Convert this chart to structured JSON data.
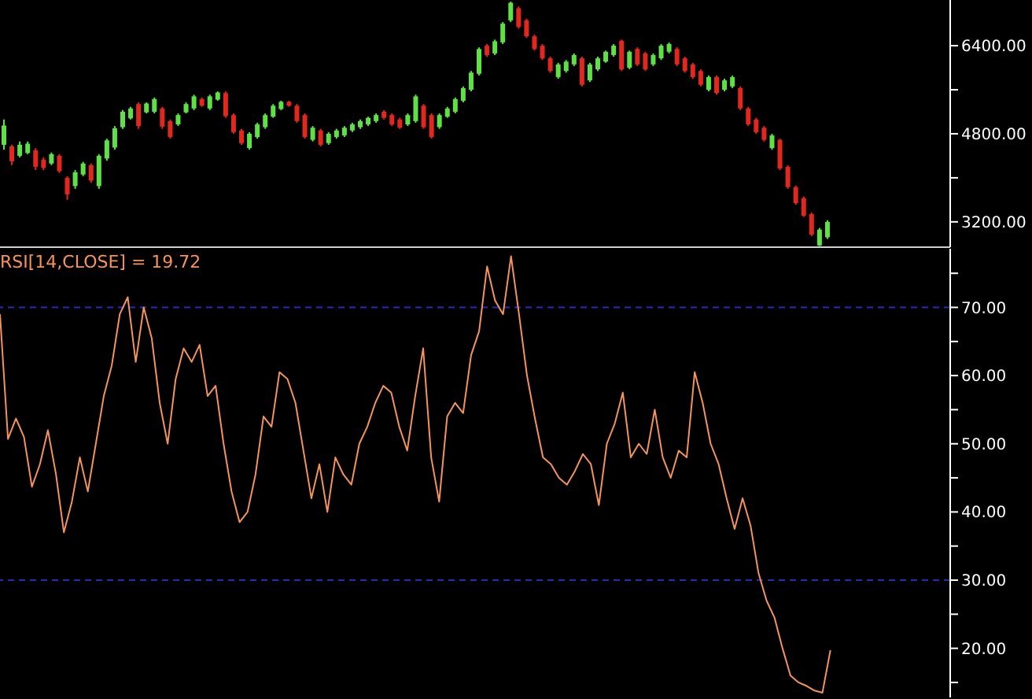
{
  "chart_data": [
    {
      "type": "candlestick",
      "categories": [
        null,
        null,
        null,
        null,
        null,
        null,
        null,
        null,
        null,
        null,
        null,
        null,
        null,
        null,
        null,
        null,
        null,
        null,
        null,
        null,
        null,
        null,
        null,
        null,
        null,
        null,
        null,
        null,
        null,
        null,
        null,
        null,
        null,
        null,
        null,
        null,
        null,
        null,
        null,
        null,
        null,
        null,
        null,
        null,
        null,
        null,
        null,
        null,
        null,
        null,
        null,
        null,
        null,
        null,
        null,
        null,
        null,
        null,
        null,
        null,
        null,
        null,
        null,
        null,
        null,
        null,
        null,
        null,
        null,
        null,
        null,
        null,
        null,
        null,
        null,
        null,
        null,
        null,
        null,
        null,
        null,
        null,
        null,
        null,
        null,
        null,
        null,
        null,
        null,
        null,
        null,
        null,
        null,
        null,
        null,
        null,
        null,
        null,
        null,
        null,
        null,
        null,
        null,
        null,
        null,
        null,
        null,
        null,
        null,
        null,
        null,
        null,
        null,
        null,
        null,
        null,
        null,
        null,
        null,
        null
      ],
      "ohlc": [
        [
          4600,
          5060,
          4510,
          4950
        ],
        [
          4570,
          4600,
          4230,
          4300
        ],
        [
          4400,
          4660,
          4370,
          4600
        ],
        [
          4450,
          4660,
          4430,
          4620
        ],
        [
          4500,
          4540,
          4140,
          4200
        ],
        [
          4330,
          4370,
          4140,
          4180
        ],
        [
          4260,
          4460,
          4230,
          4430
        ],
        [
          4400,
          4430,
          4090,
          4120
        ],
        [
          4000,
          4030,
          3600,
          3700
        ],
        [
          3850,
          4140,
          3800,
          4100
        ],
        [
          4060,
          4290,
          4030,
          4260
        ],
        [
          4230,
          4260,
          3910,
          3950
        ],
        [
          3850,
          4430,
          3800,
          4400
        ],
        [
          4350,
          4710,
          4310,
          4680
        ],
        [
          4550,
          4940,
          4510,
          4900
        ],
        [
          4920,
          5230,
          4890,
          5200
        ],
        [
          5080,
          5290,
          5060,
          5260
        ],
        [
          5340,
          5370,
          4890,
          4940
        ],
        [
          5190,
          5370,
          5170,
          5350
        ],
        [
          5200,
          5460,
          5170,
          5430
        ],
        [
          5260,
          5290,
          4890,
          4930
        ],
        [
          5030,
          5060,
          4710,
          4740
        ],
        [
          4970,
          5170,
          4940,
          5140
        ],
        [
          5190,
          5370,
          5170,
          5340
        ],
        [
          5260,
          5510,
          5230,
          5480
        ],
        [
          5430,
          5460,
          5290,
          5310
        ],
        [
          5260,
          5510,
          5230,
          5480
        ],
        [
          5420,
          5570,
          5400,
          5550
        ],
        [
          5540,
          5570,
          5090,
          5120
        ],
        [
          5140,
          5170,
          4800,
          4830
        ],
        [
          4860,
          4890,
          4600,
          4630
        ],
        [
          4540,
          4830,
          4510,
          4800
        ],
        [
          4740,
          5000,
          4710,
          4970
        ],
        [
          4920,
          5170,
          4890,
          5140
        ],
        [
          5110,
          5340,
          5090,
          5310
        ],
        [
          5250,
          5400,
          5230,
          5380
        ],
        [
          5380,
          5400,
          5290,
          5310
        ],
        [
          5310,
          5340,
          5000,
          5030
        ],
        [
          5140,
          5170,
          4710,
          4740
        ],
        [
          4690,
          4940,
          4660,
          4910
        ],
        [
          4860,
          4890,
          4570,
          4600
        ],
        [
          4630,
          4830,
          4600,
          4800
        ],
        [
          4740,
          4890,
          4710,
          4860
        ],
        [
          4770,
          4940,
          4740,
          4910
        ],
        [
          4860,
          5000,
          4830,
          4970
        ],
        [
          4920,
          5060,
          4890,
          5030
        ],
        [
          4970,
          5110,
          4940,
          5090
        ],
        [
          5030,
          5170,
          5000,
          5140
        ],
        [
          5200,
          5230,
          5060,
          5090
        ],
        [
          5140,
          5170,
          4940,
          4970
        ],
        [
          5060,
          5090,
          4890,
          4910
        ],
        [
          4970,
          5170,
          4940,
          5140
        ],
        [
          5030,
          5510,
          5000,
          5480
        ],
        [
          5310,
          5340,
          4890,
          4920
        ],
        [
          5140,
          5170,
          4710,
          4740
        ],
        [
          4920,
          5170,
          4890,
          5140
        ],
        [
          5110,
          5290,
          5090,
          5260
        ],
        [
          5200,
          5460,
          5170,
          5430
        ],
        [
          5400,
          5660,
          5370,
          5630
        ],
        [
          5600,
          5940,
          5570,
          5910
        ],
        [
          5890,
          6370,
          5860,
          6340
        ],
        [
          6400,
          6430,
          6200,
          6230
        ],
        [
          6260,
          6510,
          6230,
          6480
        ],
        [
          6460,
          6830,
          6430,
          6800
        ],
        [
          6860,
          7200,
          6830,
          7180
        ],
        [
          7080,
          7110,
          6710,
          6740
        ],
        [
          6860,
          6890,
          6540,
          6570
        ],
        [
          6570,
          6600,
          6310,
          6340
        ],
        [
          6400,
          6430,
          6140,
          6170
        ],
        [
          6170,
          6200,
          5910,
          5940
        ],
        [
          5830,
          6090,
          5800,
          6060
        ],
        [
          5940,
          6140,
          5910,
          6110
        ],
        [
          6060,
          6260,
          6030,
          6230
        ],
        [
          6170,
          6200,
          5660,
          5690
        ],
        [
          5770,
          6090,
          5740,
          6060
        ],
        [
          5970,
          6200,
          5940,
          6170
        ],
        [
          6110,
          6310,
          6090,
          6290
        ],
        [
          6230,
          6430,
          6200,
          6400
        ],
        [
          6490,
          6510,
          5940,
          5970
        ],
        [
          6000,
          6310,
          5970,
          6290
        ],
        [
          6340,
          6370,
          6030,
          6060
        ],
        [
          6260,
          6290,
          5940,
          5970
        ],
        [
          6060,
          6260,
          6030,
          6230
        ],
        [
          6170,
          6430,
          6140,
          6400
        ],
        [
          6290,
          6460,
          6260,
          6430
        ],
        [
          6340,
          6370,
          6030,
          6060
        ],
        [
          6170,
          6200,
          5910,
          5940
        ],
        [
          6060,
          6090,
          5800,
          5830
        ],
        [
          5940,
          5970,
          5660,
          5690
        ],
        [
          5600,
          5860,
          5570,
          5830
        ],
        [
          5830,
          5860,
          5510,
          5540
        ],
        [
          5600,
          5800,
          5570,
          5770
        ],
        [
          5660,
          5860,
          5630,
          5830
        ],
        [
          5630,
          5660,
          5230,
          5260
        ],
        [
          5260,
          5290,
          4940,
          4970
        ],
        [
          5060,
          5090,
          4800,
          4830
        ],
        [
          4910,
          4940,
          4660,
          4690
        ],
        [
          4540,
          4800,
          4510,
          4770
        ],
        [
          4690,
          4710,
          4140,
          4170
        ],
        [
          4200,
          4230,
          3800,
          3830
        ],
        [
          3830,
          3860,
          3510,
          3540
        ],
        [
          3630,
          3660,
          3290,
          3310
        ],
        [
          3340,
          3370,
          2940,
          2970
        ],
        [
          2770,
          3090,
          2760,
          3060
        ],
        [
          2920,
          3230,
          2890,
          3200
        ],
        null,
        null,
        null,
        null,
        null,
        null,
        null,
        null,
        null,
        null,
        null,
        null,
        null,
        null,
        null
      ],
      "colors": [
        "#5ee046",
        "#e0281e",
        "#5ee046",
        "#5ee046",
        "#e0281e",
        "#e0281e",
        "#5ee046",
        "#e0281e",
        "#e0281e",
        "#5ee046",
        "#5ee046",
        "#e0281e",
        "#5ee046",
        "#5ee046",
        "#5ee046",
        "#5ee046",
        "#5ee046",
        "#e0281e",
        "#5ee046",
        "#5ee046",
        "#e0281e",
        "#e0281e",
        "#5ee046",
        "#5ee046",
        "#5ee046",
        "#e0281e",
        "#5ee046",
        "#5ee046",
        "#e0281e",
        "#e0281e",
        "#e0281e",
        "#5ee046",
        "#5ee046",
        "#5ee046",
        "#5ee046",
        "#5ee046",
        "#e0281e",
        "#e0281e",
        "#e0281e",
        "#5ee046",
        "#e0281e",
        "#5ee046",
        "#5ee046",
        "#5ee046",
        "#5ee046",
        "#5ee046",
        "#5ee046",
        "#5ee046",
        "#e0281e",
        "#e0281e",
        "#e0281e",
        "#5ee046",
        "#5ee046",
        "#e0281e",
        "#e0281e",
        "#5ee046",
        "#5ee046",
        "#5ee046",
        "#5ee046",
        "#5ee046",
        "#5ee046",
        "#e0281e",
        "#5ee046",
        "#5ee046",
        "#5ee046",
        "#e0281e",
        "#e0281e",
        "#e0281e",
        "#e0281e",
        "#e0281e",
        "#5ee046",
        "#5ee046",
        "#5ee046",
        "#e0281e",
        "#5ee046",
        "#5ee046",
        "#5ee046",
        "#5ee046",
        "#e0281e",
        "#5ee046",
        "#e0281e",
        "#e0281e",
        "#5ee046",
        "#5ee046",
        "#5ee046",
        "#e0281e",
        "#e0281e",
        "#e0281e",
        "#e0281e",
        "#5ee046",
        "#e0281e",
        "#5ee046",
        "#5ee046",
        "#e0281e",
        "#e0281e",
        "#e0281e",
        "#e0281e",
        "#5ee046",
        "#e0281e",
        "#e0281e",
        "#e0281e",
        "#e0281e",
        "#e0281e",
        "#5ee046",
        "#5ee046",
        null,
        null,
        null,
        null,
        null,
        null,
        null,
        null,
        null,
        null,
        null,
        null,
        null,
        null,
        null
      ],
      "ylim": [
        2740,
        7230
      ],
      "yticks": [
        {
          "value": 3200,
          "label": "3200.00"
        },
        {
          "value": 4000,
          "label": null
        },
        {
          "value": 4800,
          "label": "4800.00"
        },
        {
          "value": 5600,
          "label": null
        },
        {
          "value": 6400,
          "label": "6400.00"
        }
      ],
      "tick_labels": "y"
    },
    {
      "type": "line",
      "title": "RSI[14,CLOSE] = 19.72",
      "categories": [
        null,
        null,
        null,
        null,
        null,
        null,
        null,
        null,
        null,
        null,
        null,
        null,
        null,
        null,
        null,
        null,
        null,
        null,
        null,
        null,
        null,
        null,
        null,
        null,
        null,
        null,
        null,
        null,
        null,
        null,
        null,
        null,
        null,
        null,
        null,
        null,
        null,
        null,
        null,
        null,
        null,
        null,
        null,
        null,
        null,
        null,
        null,
        null,
        null,
        null,
        null,
        null,
        null,
        null,
        null,
        null,
        null,
        null,
        null,
        null,
        null,
        null,
        null,
        null,
        null,
        null,
        null,
        null,
        null,
        null,
        null,
        null,
        null,
        null,
        null,
        null,
        null,
        null,
        null,
        null,
        null,
        null,
        null,
        null,
        null,
        null,
        null,
        null,
        null,
        null,
        null,
        null,
        null,
        null,
        null,
        null,
        null,
        null,
        null,
        null,
        null,
        null,
        null,
        null,
        null,
        null,
        null,
        null,
        null,
        null,
        null,
        null,
        null,
        null,
        null,
        null,
        null,
        null,
        null,
        null
      ],
      "series": [
        {
          "color": "#f4945c",
          "values": [
            69,
            50.7,
            53.7,
            51,
            43.7,
            47,
            52,
            45.6,
            37,
            41.5,
            48,
            43,
            50,
            57,
            61.5,
            69,
            71.5,
            62,
            70,
            65.5,
            56,
            50,
            59.5,
            64,
            62,
            64.5,
            57,
            58.5,
            50,
            43,
            38.5,
            40,
            45.5,
            54,
            52.5,
            60.5,
            59.5,
            56,
            49,
            42,
            47,
            40,
            48,
            45.5,
            44,
            50,
            52.5,
            56,
            58.5,
            57.5,
            52.5,
            49,
            57,
            64,
            48,
            41.5,
            54,
            56,
            54.5,
            63,
            66.5,
            76,
            71,
            69,
            77.5,
            69,
            60,
            53.7,
            48,
            47,
            45,
            44,
            46,
            48.5,
            47,
            41,
            50,
            53,
            57.5,
            48,
            50,
            48.5,
            55,
            48,
            45,
            49,
            48,
            60.5,
            56,
            50,
            47,
            42,
            37.5,
            42,
            38,
            31,
            27,
            24.5,
            20,
            16,
            15,
            14.5,
            13.8,
            13.5,
            19.72,
            null,
            null,
            null,
            null,
            null,
            null,
            null,
            null,
            null,
            null,
            null,
            null,
            null,
            null,
            null
          ]
        }
      ],
      "ylim": [
        12.8,
        78.6
      ],
      "yticks": [
        {
          "value": 15,
          "label": null
        },
        {
          "value": 20,
          "label": "20.00"
        },
        {
          "value": 25,
          "label": null
        },
        {
          "value": 30,
          "label": "30.00"
        },
        {
          "value": 35,
          "label": null
        },
        {
          "value": 40,
          "label": "40.00"
        },
        {
          "value": 45,
          "label": null
        },
        {
          "value": 50,
          "label": "50.00"
        },
        {
          "value": 55,
          "label": null
        },
        {
          "value": 60,
          "label": "60.00"
        },
        {
          "value": 65,
          "label": null
        },
        {
          "value": 70,
          "label": "70.00"
        },
        {
          "value": 75,
          "label": null
        }
      ],
      "ref_lines": [
        {
          "axis": "y",
          "value": 70,
          "color": "#2a2ab4",
          "line_style": "dashed"
        },
        {
          "axis": "y",
          "value": 30,
          "color": "#2a2ab4",
          "line_style": "dashed"
        }
      ],
      "tick_labels": "y"
    }
  ]
}
